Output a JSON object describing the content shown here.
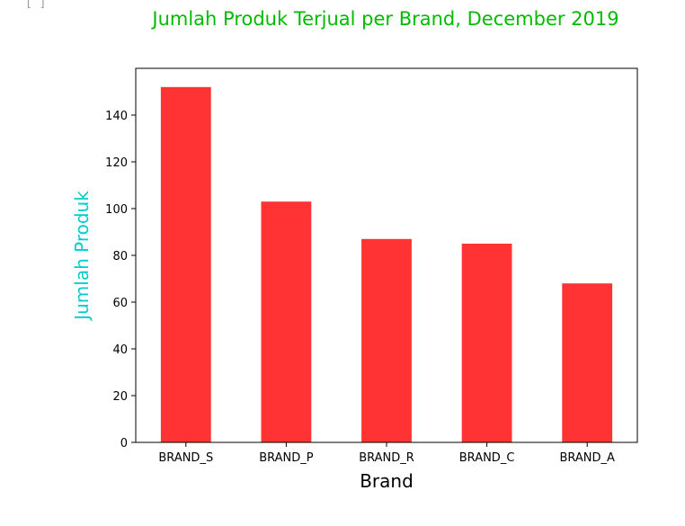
{
  "cell": {
    "prompt": "[ ]"
  },
  "chart_data": {
    "type": "bar",
    "title": "Jumlah Produk Terjual per Brand, December 2019",
    "xlabel": "Brand",
    "ylabel": "Jumlah Produk",
    "categories": [
      "BRAND_S",
      "BRAND_P",
      "BRAND_R",
      "BRAND_C",
      "BRAND_A"
    ],
    "values": [
      152,
      103,
      87,
      85,
      68
    ],
    "ylim": [
      0,
      160
    ],
    "yticks": [
      0,
      20,
      40,
      60,
      80,
      100,
      120,
      140
    ],
    "grid": false,
    "legend": "none",
    "colors": {
      "bar": "#ff3333",
      "title": "#00bb00",
      "ylabel": "#00cccc",
      "axis": "#000000"
    }
  }
}
